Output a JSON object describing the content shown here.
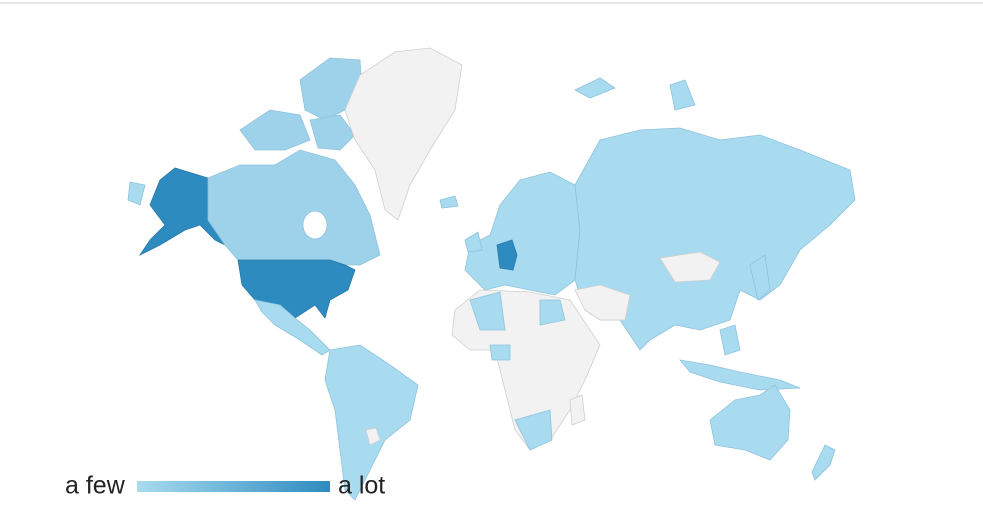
{
  "legend": {
    "low_label": "a few",
    "high_label": "a lot",
    "low_color": "#a8dbef",
    "high_color": "#2e8bc0"
  }
}
